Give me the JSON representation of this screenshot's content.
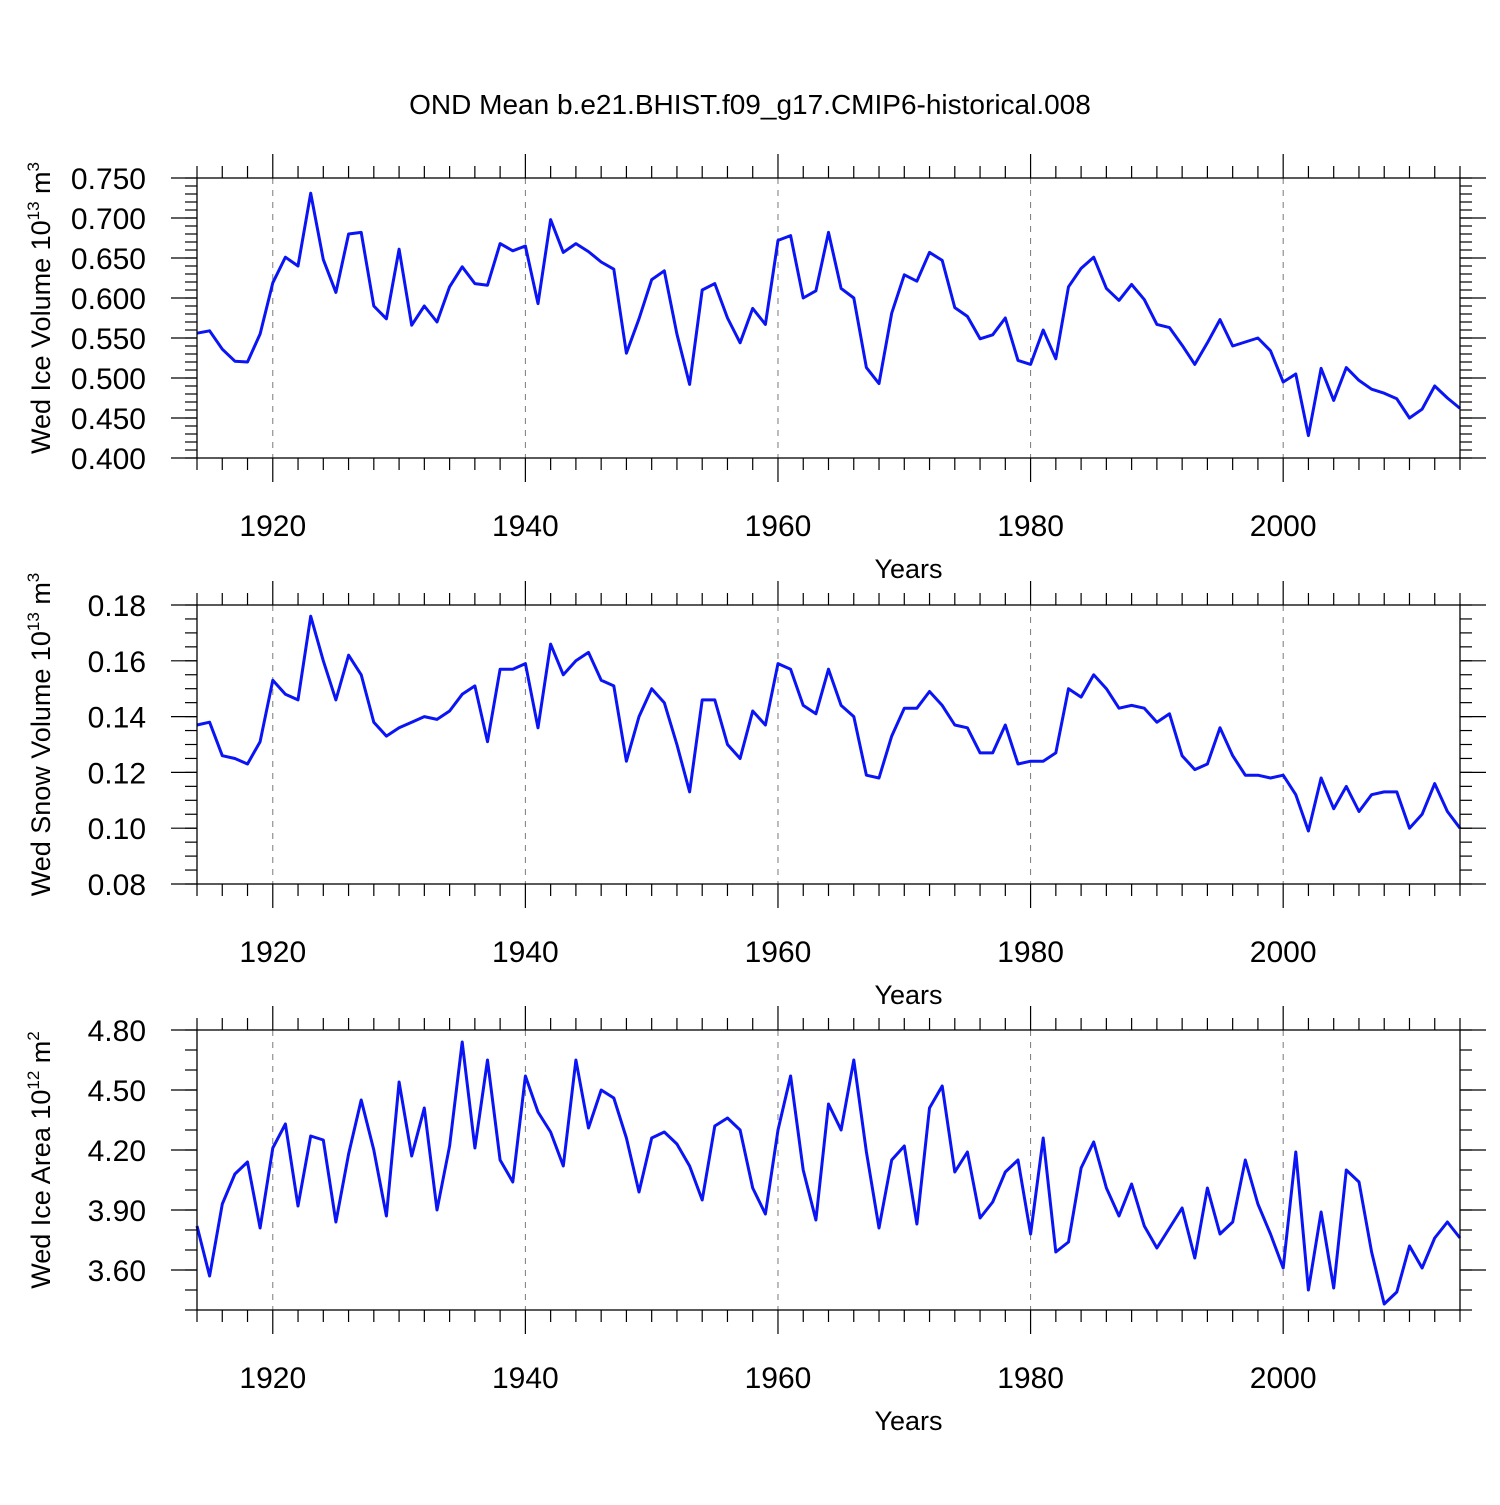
{
  "title": "OND Mean b.e21.BHIST.f09_g17.CMIP6-historical.008",
  "colors": {
    "line": "#0a14f5",
    "axis": "#000000",
    "grid": "#7a7a7a"
  },
  "chart_data": [
    {
      "type": "line",
      "ylabel": {
        "main": "Wed Ice Volume 10",
        "exp": "13",
        "unit": " m",
        "unit_exp": "3"
      },
      "xlabel": "Years",
      "xlim": [
        1914,
        2014
      ],
      "ylim": [
        0.4,
        0.75
      ],
      "grid_x": [
        1920,
        1940,
        1960,
        1980,
        2000
      ],
      "x_ticks": [
        1920,
        1940,
        1960,
        1980,
        2000
      ],
      "x_tick_labels": [
        "1920",
        "1940",
        "1960",
        "1980",
        "2000"
      ],
      "y_ticks": [
        0.4,
        0.45,
        0.5,
        0.55,
        0.6,
        0.65,
        0.7,
        0.75
      ],
      "y_tick_labels": [
        "0.400",
        "0.450",
        "0.500",
        "0.550",
        "0.600",
        "0.650",
        "0.700",
        "0.750"
      ],
      "y_minor_step": 0.01,
      "x_start": 1914,
      "series": [
        {
          "name": "Wed Ice Volume",
          "values": [
            0.556,
            0.559,
            0.536,
            0.521,
            0.52,
            0.555,
            0.619,
            0.651,
            0.64,
            0.731,
            0.648,
            0.607,
            0.68,
            0.682,
            0.59,
            0.574,
            0.661,
            0.566,
            0.59,
            0.57,
            0.614,
            0.639,
            0.618,
            0.616,
            0.668,
            0.659,
            0.665,
            0.593,
            0.698,
            0.657,
            0.668,
            0.658,
            0.645,
            0.636,
            0.531,
            0.574,
            0.623,
            0.634,
            0.555,
            0.492,
            0.61,
            0.618,
            0.575,
            0.544,
            0.587,
            0.567,
            0.672,
            0.678,
            0.6,
            0.609,
            0.682,
            0.612,
            0.6,
            0.513,
            0.493,
            0.581,
            0.629,
            0.621,
            0.657,
            0.647,
            0.588,
            0.577,
            0.549,
            0.554,
            0.575,
            0.522,
            0.517,
            0.56,
            0.524,
            0.614,
            0.637,
            0.651,
            0.612,
            0.597,
            0.617,
            0.598,
            0.567,
            0.563,
            0.541,
            0.517,
            0.544,
            0.573,
            0.54,
            0.545,
            0.55,
            0.534,
            0.495,
            0.505,
            0.428,
            0.512,
            0.472,
            0.513,
            0.497,
            0.486,
            0.481,
            0.474,
            0.45,
            0.461,
            0.49,
            0.475,
            0.462
          ]
        }
      ]
    },
    {
      "type": "line",
      "ylabel": {
        "main": "Wed Snow Volume 10",
        "exp": "13",
        "unit": " m",
        "unit_exp": "3"
      },
      "xlabel": "Years",
      "xlim": [
        1914,
        2014
      ],
      "ylim": [
        0.08,
        0.18
      ],
      "grid_x": [
        1920,
        1940,
        1960,
        1980,
        2000
      ],
      "x_ticks": [
        1920,
        1940,
        1960,
        1980,
        2000
      ],
      "x_tick_labels": [
        "1920",
        "1940",
        "1960",
        "1980",
        "2000"
      ],
      "y_ticks": [
        0.08,
        0.1,
        0.12,
        0.14,
        0.16,
        0.18
      ],
      "y_tick_labels": [
        "0.08",
        "0.10",
        "0.12",
        "0.14",
        "0.16",
        "0.18"
      ],
      "y_minor_step": 0.005,
      "x_start": 1914,
      "series": [
        {
          "name": "Wed Snow Volume",
          "values": [
            0.137,
            0.138,
            0.126,
            0.125,
            0.123,
            0.131,
            0.153,
            0.148,
            0.146,
            0.176,
            0.16,
            0.146,
            0.162,
            0.155,
            0.138,
            0.133,
            0.136,
            0.138,
            0.14,
            0.139,
            0.142,
            0.148,
            0.151,
            0.131,
            0.157,
            0.157,
            0.159,
            0.136,
            0.166,
            0.155,
            0.16,
            0.163,
            0.153,
            0.151,
            0.124,
            0.14,
            0.15,
            0.145,
            0.13,
            0.113,
            0.146,
            0.146,
            0.13,
            0.125,
            0.142,
            0.137,
            0.159,
            0.157,
            0.144,
            0.141,
            0.157,
            0.144,
            0.14,
            0.119,
            0.118,
            0.133,
            0.143,
            0.143,
            0.149,
            0.144,
            0.137,
            0.136,
            0.127,
            0.127,
            0.137,
            0.123,
            0.124,
            0.124,
            0.127,
            0.15,
            0.147,
            0.155,
            0.15,
            0.143,
            0.144,
            0.143,
            0.138,
            0.141,
            0.126,
            0.121,
            0.123,
            0.136,
            0.126,
            0.119,
            0.119,
            0.118,
            0.119,
            0.112,
            0.099,
            0.118,
            0.107,
            0.115,
            0.106,
            0.112,
            0.113,
            0.113,
            0.1,
            0.105,
            0.116,
            0.106,
            0.1
          ]
        }
      ]
    },
    {
      "type": "line",
      "ylabel": {
        "main": "Wed Ice Area 10",
        "exp": "12",
        "unit": " m",
        "unit_exp": "2"
      },
      "xlabel": "Years",
      "xlim": [
        1914,
        2014
      ],
      "ylim": [
        3.4,
        4.8
      ],
      "grid_x": [
        1920,
        1940,
        1960,
        1980,
        2000
      ],
      "x_ticks": [
        1920,
        1940,
        1960,
        1980,
        2000
      ],
      "x_tick_labels": [
        "1920",
        "1940",
        "1960",
        "1980",
        "2000"
      ],
      "y_ticks": [
        3.6,
        3.9,
        4.2,
        4.5,
        4.8
      ],
      "y_tick_labels": [
        "3.60",
        "3.90",
        "4.20",
        "4.50",
        "4.80"
      ],
      "y_minor_step": 0.1,
      "x_start": 1914,
      "series": [
        {
          "name": "Wed Ice Area",
          "values": [
            3.82,
            3.57,
            3.93,
            4.08,
            4.14,
            3.81,
            4.21,
            4.33,
            3.92,
            4.27,
            4.25,
            3.84,
            4.18,
            4.45,
            4.2,
            3.87,
            4.54,
            4.17,
            4.41,
            3.9,
            4.22,
            4.74,
            4.21,
            4.65,
            4.15,
            4.04,
            4.57,
            4.39,
            4.29,
            4.12,
            4.65,
            4.31,
            4.5,
            4.46,
            4.26,
            3.99,
            4.26,
            4.29,
            4.23,
            4.12,
            3.95,
            4.32,
            4.36,
            4.3,
            4.01,
            3.88,
            4.3,
            4.57,
            4.1,
            3.85,
            4.43,
            4.3,
            4.65,
            4.19,
            3.81,
            4.15,
            4.22,
            3.83,
            4.41,
            4.52,
            4.09,
            4.19,
            3.86,
            3.94,
            4.09,
            4.15,
            3.78,
            4.26,
            3.69,
            3.74,
            4.11,
            4.24,
            4.01,
            3.87,
            4.03,
            3.82,
            3.71,
            3.81,
            3.91,
            3.66,
            4.01,
            3.78,
            3.84,
            4.15,
            3.93,
            3.78,
            3.61,
            4.19,
            3.5,
            3.89,
            3.51,
            4.1,
            4.04,
            3.69,
            3.43,
            3.49,
            3.72,
            3.61,
            3.76,
            3.84,
            3.76
          ]
        }
      ]
    }
  ]
}
